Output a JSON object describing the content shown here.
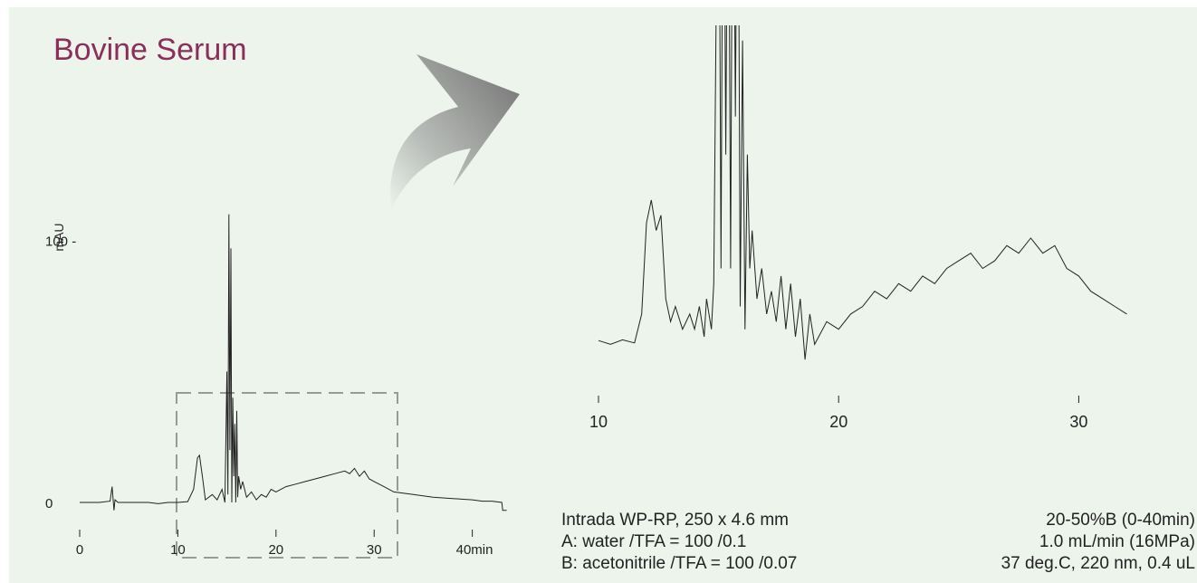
{
  "title": "Bovine Serum",
  "chart_data": [
    {
      "type": "line",
      "name": "full chromatogram",
      "ylabel": "mAU",
      "xlabel": "",
      "x_unit_label": "40min",
      "xticks": [
        0,
        10,
        20,
        30,
        40
      ],
      "xtick_labels": [
        "0",
        "10",
        "20",
        "30",
        "40min"
      ],
      "yticks": [
        0,
        100
      ],
      "ytick_labels": [
        "0",
        "100 -"
      ],
      "xlim": [
        0,
        44
      ],
      "ylim": [
        0,
        140
      ],
      "x": [
        0,
        2,
        3.1,
        3.3,
        3.5,
        3.6,
        3.9,
        5,
        7,
        8,
        9,
        10,
        11,
        11.6,
        12.0,
        12.2,
        12.5,
        12.8,
        13.5,
        14,
        14.5,
        14.8,
        15.0,
        15.1,
        15.2,
        15.3,
        15.4,
        15.5,
        15.6,
        15.7,
        15.8,
        15.9,
        16.0,
        16.1,
        16.2,
        16.4,
        16.6,
        17,
        17.5,
        18,
        18.5,
        19,
        19.5,
        20,
        21,
        22,
        23,
        24,
        25,
        26,
        27,
        27.5,
        28,
        28.5,
        29,
        29.5,
        30,
        31,
        32,
        34,
        36,
        38,
        40,
        41,
        42,
        43,
        43.1,
        43.5
      ],
      "y": [
        0,
        0,
        0.5,
        6,
        -3,
        1,
        0,
        0,
        0,
        -0.5,
        0,
        0,
        0.3,
        5,
        17,
        18,
        10,
        1,
        3,
        1,
        5,
        0,
        50,
        3,
        110,
        20,
        97,
        0,
        40,
        10,
        30,
        0,
        35,
        2,
        10,
        5,
        8,
        2,
        4,
        1,
        3,
        2,
        5,
        4,
        6,
        7,
        8,
        9,
        10,
        11,
        12,
        11,
        13,
        10,
        12,
        9,
        8,
        6,
        4,
        3,
        2,
        1.5,
        1,
        0.5,
        0.5,
        0,
        -3,
        -3
      ]
    },
    {
      "type": "line",
      "name": "zoomed region",
      "xticks": [
        10,
        20,
        30
      ],
      "xtick_labels": [
        "10",
        "20",
        "30"
      ],
      "xlim": [
        10,
        33
      ],
      "ylim": [
        -4,
        42
      ],
      "x": [
        10,
        10.5,
        11,
        11.5,
        11.8,
        12.0,
        12.2,
        12.4,
        12.6,
        12.8,
        13.0,
        13.2,
        13.5,
        13.8,
        14,
        14.2,
        14.4,
        14.5,
        14.7,
        14.8,
        15.0,
        15.1,
        15.2,
        15.3,
        15.4,
        15.5,
        15.6,
        15.7,
        15.8,
        15.9,
        16.0,
        16.1,
        16.2,
        16.3,
        16.4,
        16.6,
        16.8,
        17.0,
        17.2,
        17.4,
        17.6,
        17.8,
        18.0,
        18.2,
        18.4,
        18.6,
        18.8,
        19,
        19.5,
        20,
        20.5,
        21,
        21.5,
        22,
        22.5,
        23,
        23.5,
        24,
        24.5,
        25,
        25.5,
        26,
        26.5,
        27,
        27.5,
        28,
        28.5,
        29,
        29.5,
        30,
        30.5,
        31,
        31.5,
        32
      ],
      "y": [
        0.5,
        0,
        0.6,
        0.2,
        4,
        16,
        19,
        15,
        17,
        6,
        3,
        5,
        2,
        4,
        2,
        5,
        1,
        6,
        2,
        8,
        80,
        10,
        80,
        25,
        80,
        10,
        80,
        30,
        80,
        5,
        40,
        2,
        25,
        10,
        15,
        6,
        10,
        4,
        7,
        3,
        9,
        2,
        8,
        1,
        6,
        -2,
        4,
        0,
        3,
        2,
        4,
        5,
        7,
        6,
        8,
        7,
        9,
        8,
        10,
        11,
        12,
        10,
        11,
        13,
        12,
        14,
        12,
        13,
        10,
        9,
        7,
        6,
        5,
        4
      ]
    }
  ],
  "info": {
    "left": [
      "Intrada WP-RP, 250 x 4.6 mm",
      "A: water /TFA = 100 /0.1",
      "B: acetonitrile /TFA = 100 /0.07"
    ],
    "right": [
      "20-50%B (0-40min)",
      "1.0 mL/min (16MPa)",
      "37 deg.C, 220 nm, 0.4 uL"
    ]
  },
  "colors": {
    "background": "#ecf4ec",
    "title": "#8b2e5a",
    "trace": "#222222",
    "zoom_box": "#999999",
    "arrow": "#8a8a8a"
  }
}
